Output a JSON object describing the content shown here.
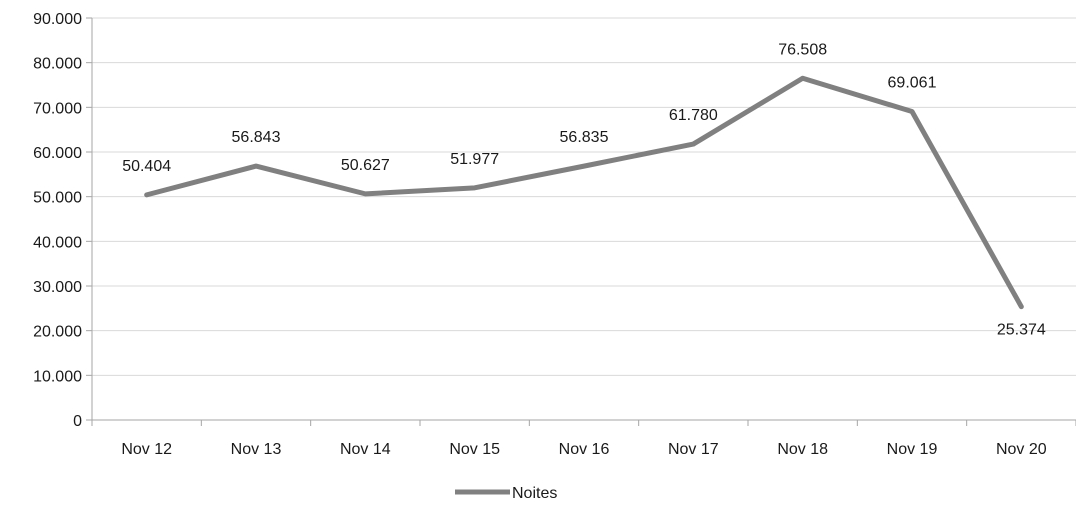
{
  "chart_data": {
    "type": "line",
    "categories": [
      "Nov 12",
      "Nov 13",
      "Nov 14",
      "Nov 15",
      "Nov 16",
      "Nov 17",
      "Nov 18",
      "Nov 19",
      "Nov 20"
    ],
    "series": [
      {
        "name": "Noites",
        "values": [
          50404,
          56843,
          50627,
          51977,
          56835,
          61780,
          76508,
          69061,
          25374
        ],
        "labels": [
          "50.404",
          "56.843",
          "50.627",
          "51.977",
          "56.835",
          "61.780",
          "76.508",
          "69.061",
          "25.374"
        ],
        "color": "#808080"
      }
    ],
    "y_ticks": [
      0,
      10000,
      20000,
      30000,
      40000,
      50000,
      60000,
      70000,
      80000,
      90000
    ],
    "y_tick_labels": [
      "0",
      "10.000",
      "20.000",
      "30.000",
      "40.000",
      "50.000",
      "60.000",
      "70.000",
      "80.000",
      "90.000"
    ],
    "ylim": [
      0,
      90000
    ],
    "grid": true,
    "gridline_color": "#d9d9d9",
    "axis_color": "#a6a6a6",
    "legend_position": "bottom"
  }
}
